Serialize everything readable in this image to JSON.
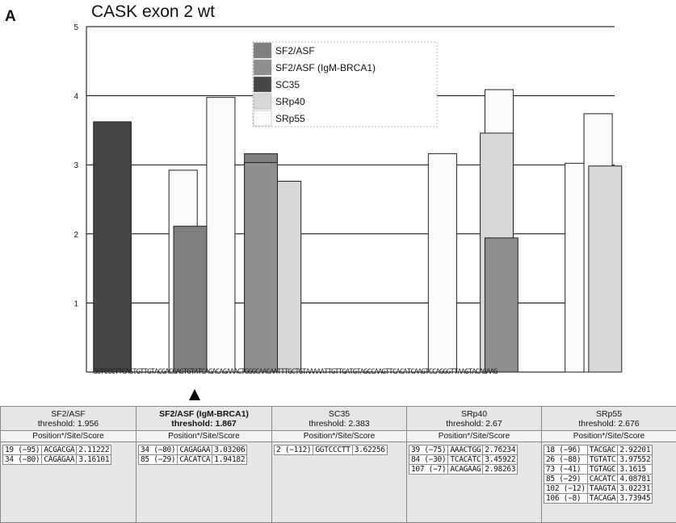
{
  "panel_letter": "A",
  "chart_data": {
    "type": "bar",
    "title": "CASK exon 2 wt",
    "ylim": [
      0,
      5
    ],
    "yticks": [
      "5",
      "4",
      "3",
      "2",
      "1"
    ],
    "legend_position": "top-center",
    "legend": [
      {
        "name": "SF2/ASF",
        "color": "#7f7f7f"
      },
      {
        "name": "SF2/ASF (IgM-BRCA1)",
        "color": "#8f8f8f"
      },
      {
        "name": "SC35",
        "color": "#454545"
      },
      {
        "name": "SRp40",
        "color": "#d8d8d8"
      },
      {
        "name": "SRp55",
        "color": "#fafafa"
      }
    ],
    "series": [
      {
        "name": "SF2/ASF",
        "color": "#7f7f7f",
        "points": [
          {
            "x": 19,
            "y": 2.11222
          },
          {
            "x": 34,
            "y": 3.16101
          }
        ]
      },
      {
        "name": "SF2/ASF (IgM-BRCA1)",
        "color": "#8f8f8f",
        "points": [
          {
            "x": 34,
            "y": 3.03206
          },
          {
            "x": 85,
            "y": 1.94182
          }
        ]
      },
      {
        "name": "SC35",
        "color": "#454545",
        "points": [
          {
            "x": 2,
            "y": 3.62256
          }
        ]
      },
      {
        "name": "SRp40",
        "color": "#d8d8d8",
        "points": [
          {
            "x": 39,
            "y": 2.76234
          },
          {
            "x": 84,
            "y": 3.45922
          },
          {
            "x": 107,
            "y": 2.98263
          }
        ]
      },
      {
        "name": "SRp55",
        "color": "#fafafa",
        "points": [
          {
            "x": 18,
            "y": 2.92201
          },
          {
            "x": 26,
            "y": 3.97552
          },
          {
            "x": 73,
            "y": 3.1615
          },
          {
            "x": 85,
            "y": 4.08781
          },
          {
            "x": 102,
            "y": 3.02231
          },
          {
            "x": 106,
            "y": 3.73945
          }
        ]
      }
    ],
    "sequence": "GGTCCCTTCAGTGTTGTACGACGAGTGTATCAGACAGAAACTGGGCAACAATTTGCTGTAAAAATTGTTGATGTAGCCAAGTTCACATCAAGTCCAGGGTTAAGTACAGAAG"
  },
  "motif_table": {
    "columns": [
      {
        "name": "SF2/ASF",
        "threshold": "threshold: 1.956",
        "bold": false,
        "sub": "Position*/Site/Score",
        "hits": [
          [
            "19 (−95)",
            "ACGACGA",
            "2.11222"
          ],
          [
            "34 (−80)",
            "CAGAGAA",
            "3.16101"
          ]
        ]
      },
      {
        "name": "SF2/ASF (IgM-BRCA1)",
        "threshold": "threshold: 1.867",
        "bold": true,
        "sub": "Position*/Site/Score",
        "hits": [
          [
            "34 (−80)",
            "CAGAGAA",
            "3.03206"
          ],
          [
            "85 (−29)",
            "CACATCA",
            "1.94182"
          ]
        ]
      },
      {
        "name": "SC35",
        "threshold": "threshold: 2.383",
        "bold": false,
        "sub": "Position*/Site/Score",
        "hits": [
          [
            "2 (−112)",
            "GGTCCCTT",
            "3.62256"
          ]
        ]
      },
      {
        "name": "SRp40",
        "threshold": "threshold: 2.67",
        "bold": false,
        "sub": "Position*/Site/Score",
        "hits": [
          [
            "39 (−75)",
            "AAACTGG",
            "2.76234"
          ],
          [
            "84 (−30)",
            "TCACATC",
            "3.45922"
          ],
          [
            "107 (−7)",
            "ACAGAAG",
            "2.98263"
          ]
        ]
      },
      {
        "name": "SRp55",
        "threshold": "threshold: 2.676",
        "bold": false,
        "sub": "Position*/Site/Score",
        "hits": [
          [
            "18 (−96)",
            "TACGAC",
            "2.92201"
          ],
          [
            "26 (−88)",
            "TGTATC",
            "3.97552"
          ],
          [
            "73 (−41)",
            "TGTAGC",
            "3.1615"
          ],
          [
            "85 (−29)",
            "CACATC",
            "4.08781"
          ],
          [
            "102 (−12)",
            "TAAGTA",
            "3.02231"
          ],
          [
            "106 (−8)",
            "TACAGA",
            "3.73945"
          ]
        ]
      }
    ]
  }
}
